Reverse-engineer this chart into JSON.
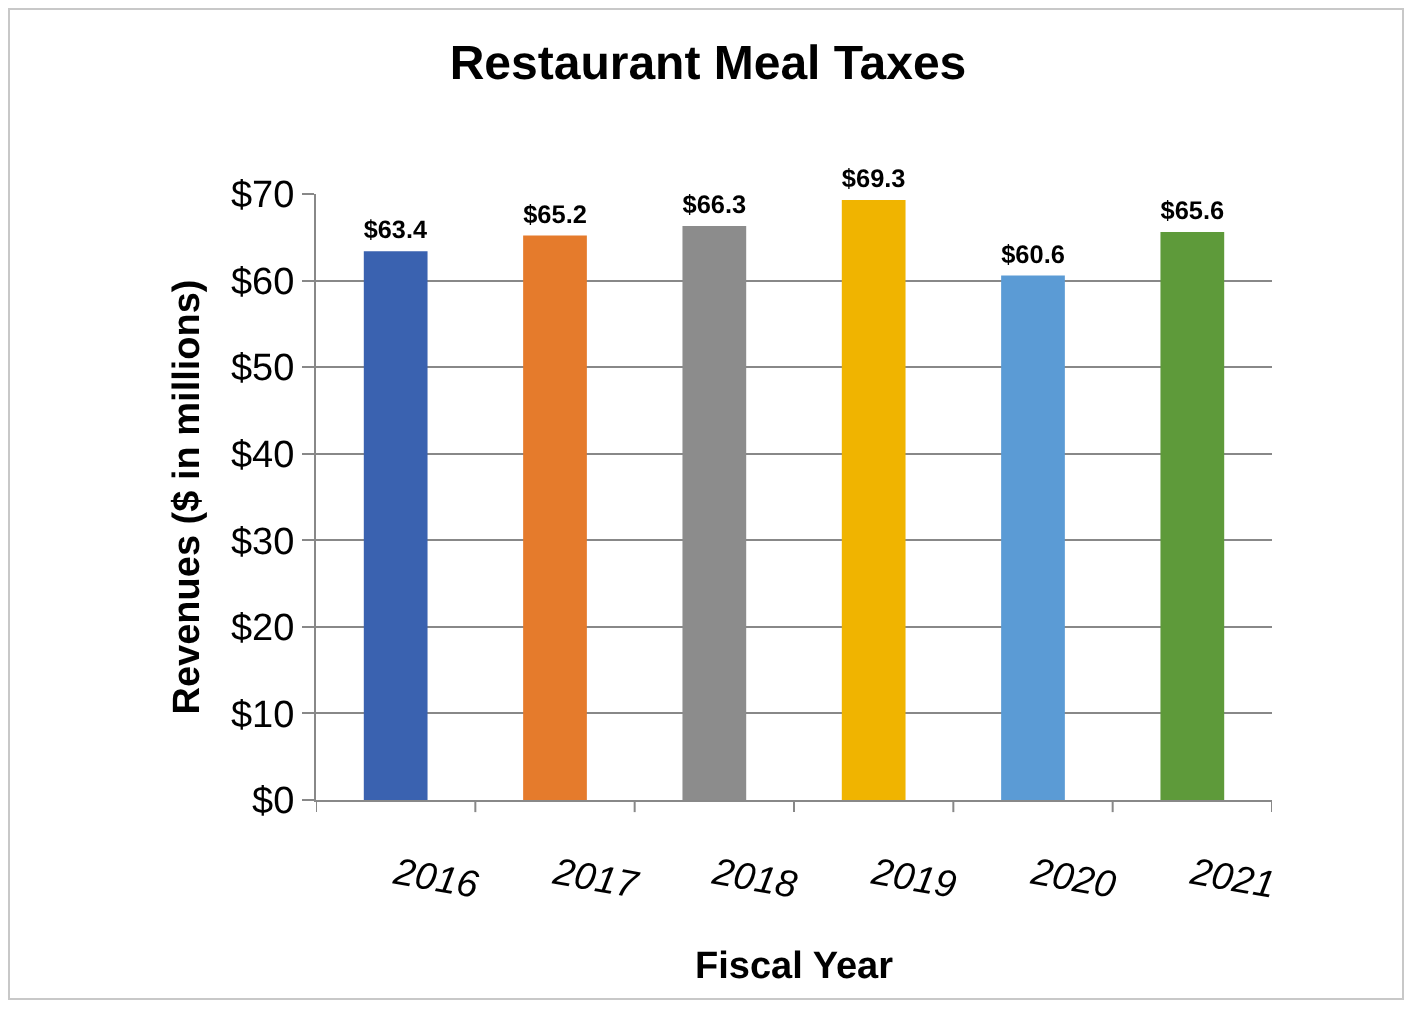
{
  "chart_data": {
    "type": "bar",
    "title": "Restaurant Meal Taxes",
    "xlabel": "Fiscal Year",
    "ylabel": "Revenues ($ in millions)",
    "categories": [
      "2016",
      "2017",
      "2018",
      "2019",
      "2020",
      "2021"
    ],
    "values": [
      63.4,
      65.2,
      66.3,
      69.3,
      60.6,
      65.6
    ],
    "colors": [
      "#3a62b0",
      "#e57b2c",
      "#8c8c8c",
      "#f0b400",
      "#5b9bd5",
      "#5e9a3a"
    ],
    "value_labels": [
      "$63.4",
      "$65.2",
      "$66.3",
      "$69.3",
      "$60.6",
      "$65.6"
    ],
    "ylim": [
      0,
      70
    ],
    "yticks": [
      {
        "value": 0,
        "label": "$0"
      },
      {
        "value": 10,
        "label": "$10"
      },
      {
        "value": 20,
        "label": "$20"
      },
      {
        "value": 30,
        "label": "$30"
      },
      {
        "value": 40,
        "label": "$40"
      },
      {
        "value": 50,
        "label": "$50"
      },
      {
        "value": 60,
        "label": "$60"
      },
      {
        "value": 70,
        "label": "$70"
      }
    ],
    "grid": "y",
    "legend": false
  }
}
